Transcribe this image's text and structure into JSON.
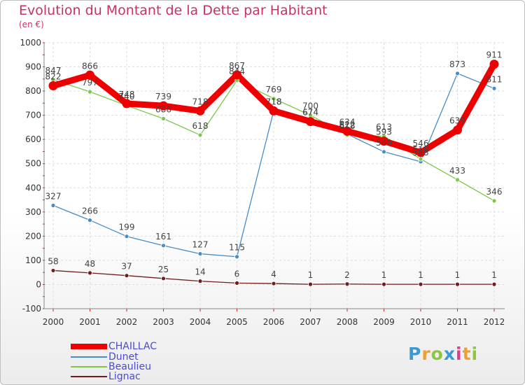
{
  "title": "Evolution du Montant de la Dette par Habitant",
  "subtitle": "(en €)",
  "brand": {
    "letters": [
      "P",
      "r",
      "o",
      "x",
      "i",
      "t",
      "i"
    ],
    "colors": [
      "#3b9ad6",
      "#f0a030",
      "#8cc83c",
      "#3b9ad6",
      "#e03a8c",
      "#f0a030",
      "#8cc83c"
    ]
  },
  "chart_data": {
    "type": "line",
    "categories": [
      "2000",
      "2001",
      "2002",
      "2003",
      "2004",
      "2005",
      "2006",
      "2007",
      "2008",
      "2009",
      "2010",
      "2011",
      "2012"
    ],
    "ylim": [
      -100,
      1000
    ],
    "yticks": [
      -100,
      0,
      100,
      200,
      300,
      400,
      500,
      600,
      700,
      800,
      900,
      1000
    ],
    "grid": true,
    "legend_position": "bottom-left",
    "series": [
      {
        "name": "CHAILLAC",
        "color": "#ee0000",
        "values": [
          822,
          866,
          748,
          739,
          718,
          867,
          718,
          674,
          634,
          593,
          546,
          639,
          911
        ]
      },
      {
        "name": "Dunet",
        "color": "#4a8cc4",
        "values": [
          327,
          266,
          199,
          161,
          127,
          115,
          718,
          674,
          622,
          549,
          508,
          873,
          811
        ]
      },
      {
        "name": "Beaulieu",
        "color": "#7cc84a",
        "values": [
          847,
          797,
          740,
          686,
          618,
          844,
          769,
          700,
          618,
          613,
          519,
          433,
          346
        ]
      },
      {
        "name": "Lignac",
        "color": "#6e1e1e",
        "values": [
          58,
          48,
          37,
          25,
          14,
          6,
          4,
          1,
          2,
          1,
          1,
          1,
          1
        ]
      }
    ]
  }
}
